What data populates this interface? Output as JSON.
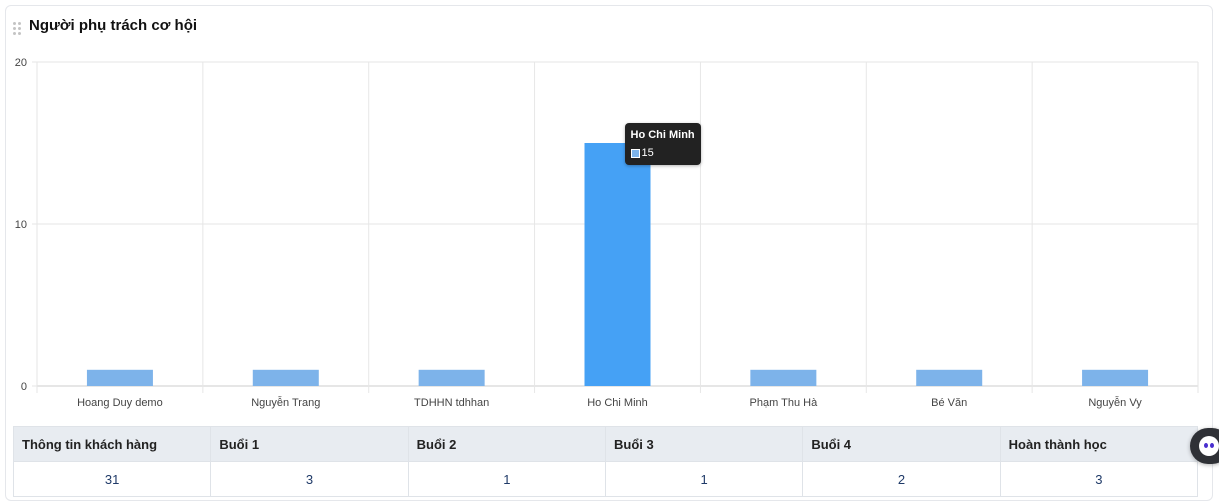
{
  "card": {
    "title": "Người phụ trách cơ hội"
  },
  "chart_data": {
    "type": "bar",
    "categories": [
      "Hoang Duy demo",
      "Nguyễn Trang",
      "TDHHN tdhhan",
      "Ho Chi Minh",
      "Phạm Thu Hà",
      "Bé Văn",
      "Nguyễn Vy"
    ],
    "values": [
      1,
      1,
      1,
      15,
      1,
      1,
      1
    ],
    "ylim": [
      0,
      20
    ],
    "yticks": [
      0,
      10,
      20
    ],
    "grid": true,
    "highlighted_index": 3,
    "colors": {
      "bar": "#7db3ea",
      "bar_highlight": "#45a1f5",
      "grid": "#e6e6e6",
      "axis": "#cccccc"
    }
  },
  "tooltip": {
    "title": "Ho Chi Minh",
    "value": "15",
    "swatch_color": "#7db3ea"
  },
  "stats_table": {
    "headers": [
      "Thông tin khách hàng",
      "Buổi 1",
      "Buổi 2",
      "Buổi 3",
      "Buổi 4",
      "Hoàn thành học"
    ],
    "row": [
      "31",
      "3",
      "1",
      "1",
      "2",
      "3"
    ]
  }
}
